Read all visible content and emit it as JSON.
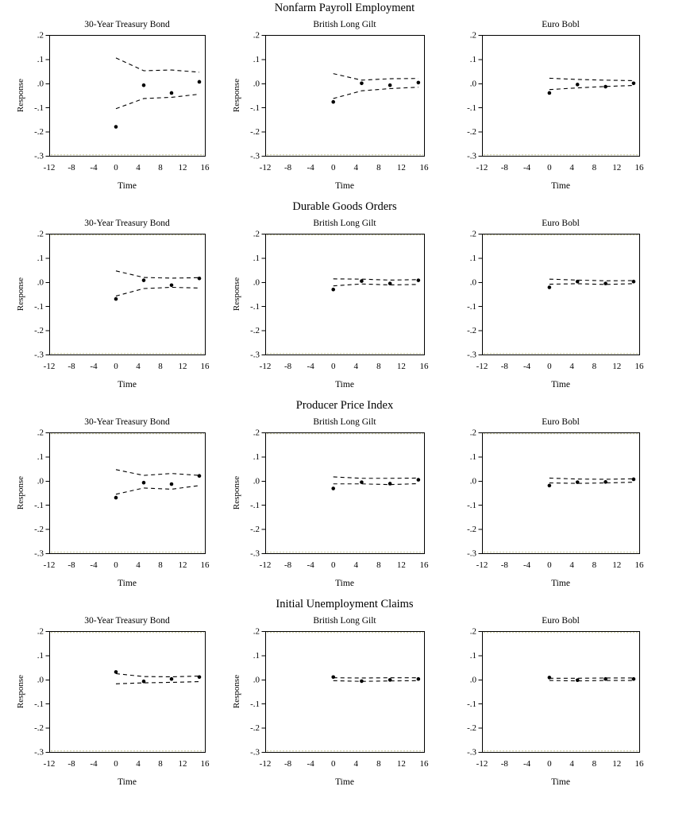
{
  "page": {
    "background": "#ffffff"
  },
  "colors": {
    "line": "#000000",
    "dot": "#000000",
    "frame": "#000000",
    "faint_edge": "#c9c99a"
  },
  "axis": {
    "ylabel": "Response",
    "xlabel": "Time",
    "ylim": [
      -0.3,
      0.2
    ],
    "xlim": [
      -12,
      16
    ],
    "yticks": [
      ".2",
      ".1",
      ".0",
      "-.1",
      "-.2",
      "-.3"
    ],
    "ytick_values": [
      0.2,
      0.1,
      0.0,
      -0.1,
      -0.2,
      -0.3
    ],
    "xticks": [
      "-12",
      "-8",
      "-4",
      "0",
      "4",
      "8",
      "12",
      "16"
    ],
    "xtick_values": [
      -12,
      -8,
      -4,
      0,
      4,
      8,
      12,
      16
    ],
    "grid": false,
    "legend": "none"
  },
  "chart_data": [
    {
      "group_title": "Nonfarm Payroll Employment",
      "charts": [
        {
          "title": "30-Year Treasury Bond",
          "type": "scatter",
          "x": [
            0,
            5,
            10,
            15
          ],
          "response": [
            -0.18,
            -0.008,
            -0.04,
            0.006
          ],
          "upper_band": [
            0.105,
            0.052,
            0.055,
            0.046
          ],
          "lower_band": [
            -0.105,
            -0.063,
            -0.058,
            -0.045
          ]
        },
        {
          "title": "British Long Gilt",
          "type": "scatter",
          "x": [
            0,
            5,
            10,
            15
          ],
          "response": [
            -0.077,
            0.0,
            -0.008,
            0.003
          ],
          "upper_band": [
            0.04,
            0.013,
            0.019,
            0.02
          ],
          "lower_band": [
            -0.063,
            -0.031,
            -0.022,
            -0.016
          ]
        },
        {
          "title": "Euro Bobl",
          "type": "scatter",
          "x": [
            0,
            5,
            10,
            15
          ],
          "response": [
            -0.04,
            -0.005,
            -0.014,
            0.0
          ],
          "upper_band": [
            0.021,
            0.016,
            0.013,
            0.011
          ],
          "lower_band": [
            -0.026,
            -0.019,
            -0.013,
            -0.009
          ]
        }
      ]
    },
    {
      "group_title": "Durable Goods Orders",
      "charts": [
        {
          "title": "30-Year Treasury Bond",
          "type": "scatter",
          "x": [
            0,
            5,
            10,
            15
          ],
          "response": [
            -0.07,
            0.007,
            -0.013,
            0.015
          ],
          "upper_band": [
            0.046,
            0.019,
            0.016,
            0.018
          ],
          "lower_band": [
            -0.058,
            -0.027,
            -0.022,
            -0.025
          ]
        },
        {
          "title": "British Long Gilt",
          "type": "scatter",
          "x": [
            0,
            5,
            10,
            15
          ],
          "response": [
            -0.031,
            0.004,
            -0.006,
            0.007
          ],
          "upper_band": [
            0.013,
            0.012,
            0.008,
            0.01
          ],
          "lower_band": [
            -0.016,
            -0.008,
            -0.012,
            -0.01
          ]
        },
        {
          "title": "Euro Bobl",
          "type": "scatter",
          "x": [
            0,
            5,
            10,
            15
          ],
          "response": [
            -0.022,
            0.002,
            -0.006,
            0.002
          ],
          "upper_band": [
            0.012,
            0.008,
            0.005,
            0.006
          ],
          "lower_band": [
            -0.009,
            -0.007,
            -0.01,
            -0.007
          ]
        }
      ]
    },
    {
      "group_title": "Producer Price Index",
      "charts": [
        {
          "title": "30-Year Treasury Bond",
          "type": "scatter",
          "x": [
            0,
            5,
            10,
            15
          ],
          "response": [
            -0.07,
            -0.008,
            -0.014,
            0.02
          ],
          "upper_band": [
            0.046,
            0.022,
            0.03,
            0.022
          ],
          "lower_band": [
            -0.056,
            -0.03,
            -0.035,
            -0.02
          ]
        },
        {
          "title": "British Long Gilt",
          "type": "scatter",
          "x": [
            0,
            5,
            10,
            15
          ],
          "response": [
            -0.032,
            -0.006,
            -0.012,
            0.004
          ],
          "upper_band": [
            0.016,
            0.01,
            0.01,
            0.011
          ],
          "lower_band": [
            -0.013,
            -0.013,
            -0.016,
            -0.012
          ]
        },
        {
          "title": "Euro Bobl",
          "type": "scatter",
          "x": [
            0,
            5,
            10,
            15
          ],
          "response": [
            -0.02,
            -0.006,
            -0.005,
            0.006
          ],
          "upper_band": [
            0.011,
            0.007,
            0.006,
            0.008
          ],
          "lower_band": [
            -0.009,
            -0.011,
            -0.009,
            -0.006
          ]
        }
      ]
    },
    {
      "group_title": "Initial Unemployment Claims",
      "charts": [
        {
          "title": "30-Year Treasury Bond",
          "type": "scatter",
          "x": [
            0,
            5,
            10,
            15
          ],
          "response": [
            0.031,
            -0.008,
            0.002,
            0.01
          ],
          "upper_band": [
            0.024,
            0.012,
            0.011,
            0.014
          ],
          "lower_band": [
            -0.018,
            -0.014,
            -0.012,
            -0.009
          ]
        },
        {
          "title": "British Long Gilt",
          "type": "scatter",
          "x": [
            0,
            5,
            10,
            15
          ],
          "response": [
            0.01,
            -0.007,
            -0.002,
            0.002
          ],
          "upper_band": [
            0.007,
            0.006,
            0.007,
            0.007
          ],
          "lower_band": [
            -0.005,
            -0.008,
            -0.006,
            -0.005
          ]
        },
        {
          "title": "Euro Bobl",
          "type": "scatter",
          "x": [
            0,
            5,
            10,
            15
          ],
          "response": [
            0.008,
            -0.003,
            0.002,
            0.002
          ],
          "upper_band": [
            0.005,
            0.005,
            0.006,
            0.006
          ],
          "lower_band": [
            -0.004,
            -0.006,
            -0.004,
            -0.004
          ]
        }
      ]
    }
  ]
}
